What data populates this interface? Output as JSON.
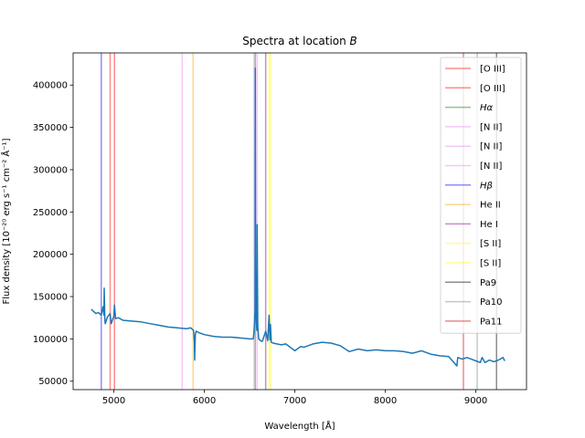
{
  "chart_data": {
    "type": "line",
    "title": "Spectra at location B",
    "title_prefix": "Spectra at location ",
    "title_italic": "B",
    "xlabel": "Wavelength [Å]",
    "ylabel": "Flux density [10⁻²⁰ erg s⁻¹ cm⁻² Å⁻¹]",
    "xlim": [
      4550,
      9560
    ],
    "ylim": [
      40000,
      438000
    ],
    "x_ticks": [
      5000,
      6000,
      7000,
      8000,
      9000
    ],
    "x_tick_labels": [
      "5000",
      "6000",
      "7000",
      "8000",
      "9000"
    ],
    "y_ticks": [
      50000,
      100000,
      150000,
      200000,
      250000,
      300000,
      350000,
      400000
    ],
    "y_tick_labels": [
      "50000",
      "100000",
      "150000",
      "200000",
      "250000",
      "300000",
      "350000",
      "400000"
    ],
    "grid": false,
    "legend_position": "top-right",
    "series": [
      {
        "color": "#1f77b4",
        "x": [
          4750,
          4780,
          4800,
          4830,
          4860,
          4880,
          4890,
          4893,
          4900,
          4905,
          4930,
          4959,
          4970,
          5000,
          5007,
          5020,
          5050,
          5100,
          5200,
          5300,
          5400,
          5500,
          5600,
          5700,
          5800,
          5850,
          5870,
          5880,
          5890,
          5893,
          5896,
          5900,
          5910,
          5950,
          6000,
          6100,
          6200,
          6300,
          6400,
          6500,
          6540,
          6548,
          6555,
          6560,
          6563,
          6566,
          6570,
          6580,
          6583,
          6590,
          6600,
          6620,
          6640,
          6678,
          6700,
          6716,
          6725,
          6731,
          6740,
          6760,
          6800,
          6850,
          6900,
          6950,
          7000,
          7065,
          7100,
          7200,
          7300,
          7400,
          7500,
          7600,
          7700,
          7800,
          7900,
          8000,
          8100,
          8200,
          8300,
          8400,
          8500,
          8600,
          8700,
          8750,
          8790,
          8800,
          8850,
          8900,
          8950,
          9000,
          9050,
          9069,
          9100,
          9150,
          9200,
          9250,
          9300,
          9320
        ],
        "y": [
          135000,
          132000,
          130000,
          131000,
          128000,
          138000,
          128000,
          160000,
          123000,
          118000,
          126000,
          130000,
          118000,
          127000,
          140000,
          124000,
          125000,
          122000,
          121000,
          120000,
          118000,
          116000,
          114000,
          113000,
          112000,
          113000,
          111000,
          110000,
          95000,
          75000,
          90000,
          105000,
          109000,
          107000,
          105000,
          103000,
          102000,
          102000,
          101000,
          100000,
          100000,
          107000,
          118000,
          135000,
          420000,
          180000,
          128000,
          110000,
          235000,
          115000,
          100000,
          98000,
          97000,
          109000,
          98000,
          128000,
          99000,
          117000,
          96000,
          95000,
          94000,
          93000,
          94000,
          90000,
          86000,
          91000,
          90000,
          94000,
          96000,
          95000,
          92000,
          85000,
          88000,
          86000,
          87000,
          86000,
          86000,
          85000,
          83000,
          86000,
          82000,
          80000,
          79000,
          73000,
          68000,
          78000,
          76000,
          78000,
          76000,
          74000,
          72000,
          78000,
          72000,
          75000,
          73000,
          75000,
          78000,
          74000
        ]
      }
    ],
    "lines": [
      {
        "label": "[O III]",
        "x": 4959,
        "color": "#ff0000"
      },
      {
        "label": "[O III]",
        "x": 5007,
        "color": "#ff0000"
      },
      {
        "label": "Hα",
        "x": 6563,
        "color": "#008000"
      },
      {
        "label": "[N II]",
        "x": 5755,
        "color": "#ee82ee"
      },
      {
        "label": "[N II]",
        "x": 6548,
        "color": "#ee82ee"
      },
      {
        "label": "[N II]",
        "x": 6583,
        "color": "#ee82ee"
      },
      {
        "label": "Hβ",
        "x": 4861,
        "color": "#0000ff"
      },
      {
        "label": "He II",
        "x": 5876,
        "color": "#ffa500"
      },
      {
        "label": "He I",
        "x": 6678,
        "color": "#800080"
      },
      {
        "label": "[S II]",
        "x": 6716,
        "color": "#ffff00"
      },
      {
        "label": "[S II]",
        "x": 6731,
        "color": "#ffff00"
      },
      {
        "label": "Pa9",
        "x": 9229,
        "color": "#000000"
      },
      {
        "label": "Pa10",
        "x": 9015,
        "color": "#808080"
      },
      {
        "label": "Pa11",
        "x": 8863,
        "color": "#cc0000"
      }
    ]
  }
}
